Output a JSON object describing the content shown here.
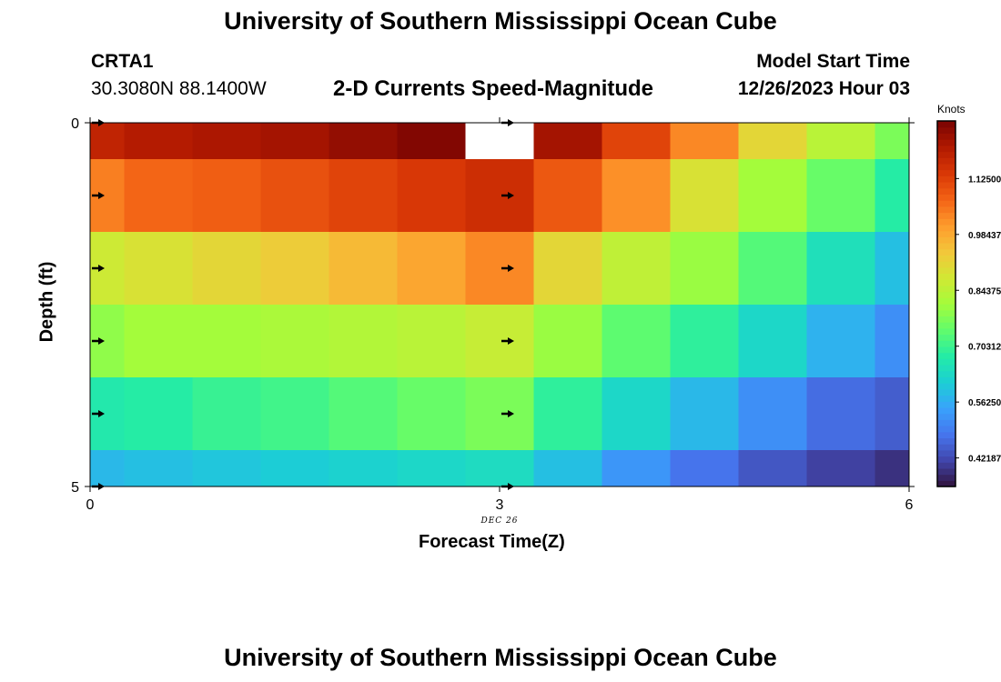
{
  "page": {
    "title": "University of Southern Mississippi Ocean Cube",
    "footer_title": "University of Southern Mississippi Ocean Cube",
    "station_id": "CRTA1",
    "station_coords": "30.3080N  88.1400W",
    "subtitle": "2-D Currents Speed-Magnitude",
    "model_start_label": "Model Start Time",
    "model_start_time": "12/26/2023 Hour 03",
    "date_label": "DEC 26"
  },
  "chart_data": {
    "type": "heatmap",
    "title": "2-D Currents Speed-Magnitude",
    "xlabel": "Forecast Time(Z)",
    "ylabel": "Depth (ft)",
    "x_ticks": [
      0,
      3,
      6
    ],
    "y_ticks": [
      0,
      5
    ],
    "xlim": [
      0,
      6
    ],
    "ylim": [
      0,
      5
    ],
    "x_cell_edges": [
      0,
      0.25,
      0.75,
      1.25,
      1.75,
      2.25,
      2.75,
      3.25,
      3.75,
      4.25,
      4.75,
      5.25,
      5.75,
      6
    ],
    "y_cell_edges": [
      0,
      0.5,
      1.5,
      2.5,
      3.5,
      4.5,
      5
    ],
    "values": [
      [
        1.18,
        1.2,
        1.21,
        1.22,
        1.24,
        1.26,
        null,
        1.22,
        1.12,
        1.03,
        0.91,
        0.84,
        0.77
      ],
      [
        1.04,
        1.07,
        1.08,
        1.1,
        1.12,
        1.14,
        1.16,
        1.09,
        1.02,
        0.89,
        0.81,
        0.75,
        0.68
      ],
      [
        0.87,
        0.89,
        0.91,
        0.93,
        0.96,
        0.99,
        1.03,
        0.91,
        0.85,
        0.8,
        0.73,
        0.65,
        0.59
      ],
      [
        0.79,
        0.81,
        0.81,
        0.82,
        0.83,
        0.84,
        0.86,
        0.8,
        0.74,
        0.69,
        0.63,
        0.57,
        0.52
      ],
      [
        0.67,
        0.68,
        0.7,
        0.71,
        0.73,
        0.75,
        0.77,
        0.69,
        0.63,
        0.58,
        0.52,
        0.47,
        0.45
      ],
      [
        0.58,
        0.59,
        0.6,
        0.61,
        0.62,
        0.63,
        0.64,
        0.59,
        0.53,
        0.48,
        0.44,
        0.41,
        0.39
      ]
    ],
    "arrow_times": [
      0,
      3
    ],
    "arrow_depths": [
      0,
      1,
      2,
      3,
      4,
      5
    ],
    "arrow_direction": "east",
    "colorbar": {
      "label": "Knots",
      "min": 0.35,
      "max": 1.27,
      "tick_values": [
        0.421875,
        0.5625,
        0.703125,
        0.84375,
        0.984375,
        1.125
      ],
      "tick_labels": [
        "0.42187",
        "0.56250",
        "0.70312",
        "0.84375",
        "0.98437",
        "1.12500"
      ],
      "colormap": [
        "#30123b",
        "#4145ab",
        "#4675ed",
        "#39a2fc",
        "#1bcfd4",
        "#24eca6",
        "#61fc6c",
        "#a4fc3b",
        "#d1e834",
        "#f3c63a",
        "#fe9b2d",
        "#f36315",
        "#d93806",
        "#b11901",
        "#7a0402"
      ]
    }
  }
}
